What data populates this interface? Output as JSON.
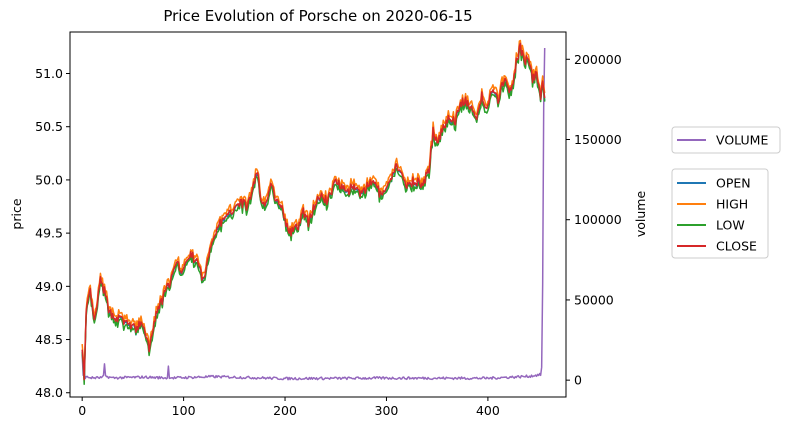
{
  "chart_data": {
    "type": "line",
    "title": "Price Evolution of Porsche on 2020-06-15",
    "xlabel": "",
    "ylabel": "price",
    "y2label": "volume",
    "xlim": [
      -12,
      477
    ],
    "ylim": [
      47.96,
      51.39
    ],
    "y2lim": [
      -10500,
      217000
    ],
    "x_ticks": [
      0,
      100,
      200,
      300,
      400
    ],
    "x_tick_labels": [
      "0",
      "100",
      "200",
      "300",
      "400"
    ],
    "y_ticks": [
      48.0,
      48.5,
      49.0,
      49.5,
      50.0,
      50.5,
      51.0
    ],
    "y_tick_labels": [
      "48.0",
      "48.5",
      "49.0",
      "49.5",
      "50.0",
      "50.5",
      "51.0"
    ],
    "y2_ticks": [
      0,
      50000,
      100000,
      150000,
      200000
    ],
    "y2_tick_labels": [
      "0",
      "50000",
      "100000",
      "150000",
      "200000"
    ],
    "grid": false,
    "legends": [
      {
        "placement": "right",
        "entries": [
          "VOLUME"
        ]
      },
      {
        "placement": "right",
        "entries": [
          "OPEN",
          "HIGH",
          "LOW",
          "CLOSE"
        ]
      }
    ],
    "price_close_keypoints": {
      "x": [
        0,
        2,
        4,
        8,
        12,
        18,
        22,
        27,
        35,
        45,
        52,
        60,
        66,
        72,
        80,
        87,
        93,
        100,
        106,
        112,
        120,
        126,
        130,
        137,
        143,
        150,
        156,
        162,
        168,
        172,
        176,
        180,
        186,
        190,
        195,
        199,
        205,
        212,
        218,
        223,
        228,
        235,
        242,
        250,
        256,
        262,
        270,
        276,
        282,
        288,
        294,
        300,
        305,
        310,
        314,
        320,
        328,
        336,
        342,
        346,
        350,
        356,
        362,
        368,
        372,
        378,
        384,
        388,
        394,
        398,
        404,
        410,
        416,
        420,
        425,
        428,
        432,
        436,
        440,
        444,
        448,
        452,
        454,
        456
      ],
      "close": [
        48.45,
        48.1,
        48.75,
        48.95,
        48.65,
        49.05,
        48.95,
        48.75,
        48.7,
        48.65,
        48.6,
        48.65,
        48.4,
        48.7,
        48.9,
        49.05,
        49.2,
        49.15,
        49.3,
        49.25,
        49.05,
        49.35,
        49.5,
        49.6,
        49.65,
        49.75,
        49.8,
        49.75,
        49.9,
        50.1,
        49.85,
        49.75,
        49.95,
        49.85,
        49.8,
        49.65,
        49.5,
        49.55,
        49.7,
        49.6,
        49.75,
        49.85,
        49.8,
        50.0,
        49.95,
        49.9,
        49.95,
        49.85,
        49.95,
        50.0,
        49.85,
        49.9,
        50.0,
        50.15,
        50.05,
        49.95,
        50.0,
        49.95,
        50.1,
        50.45,
        50.35,
        50.5,
        50.6,
        50.55,
        50.7,
        50.75,
        50.65,
        50.55,
        50.8,
        50.65,
        50.85,
        50.75,
        50.95,
        50.85,
        50.9,
        51.1,
        51.25,
        51.1,
        51.15,
        50.95,
        51.0,
        50.8,
        50.95,
        50.75
      ],
      "high_offset": 0.04,
      "low_offset": -0.04,
      "open_offset": -0.01
    },
    "volume_keypoints": {
      "x": [
        0,
        1,
        2,
        3,
        5,
        10,
        20,
        21,
        22,
        23,
        30,
        60,
        84,
        85,
        86,
        90,
        130,
        200,
        300,
        400,
        440,
        452,
        453,
        454,
        455,
        456
      ],
      "volume": [
        16000,
        3000,
        5000,
        1000,
        1500,
        1000,
        1200,
        2500,
        9000,
        2000,
        1000,
        1500,
        1000,
        8000,
        1500,
        1000,
        1800,
        600,
        900,
        800,
        2000,
        3000,
        8000,
        60000,
        170000,
        207000
      ]
    }
  },
  "colors": {
    "OPEN": "#1f77b4",
    "HIGH": "#ff7f0e",
    "LOW": "#2ca02c",
    "CLOSE": "#d62728",
    "VOLUME": "#9467bd"
  }
}
